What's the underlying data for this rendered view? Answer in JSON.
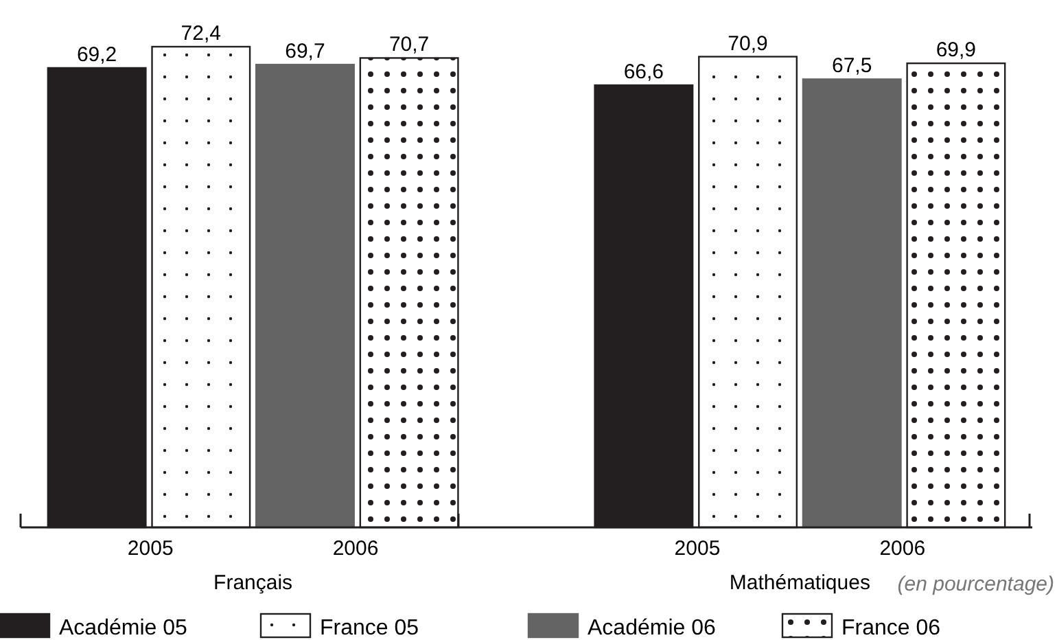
{
  "chart_data": {
    "type": "bar",
    "categories": [
      "Français",
      "Mathématiques"
    ],
    "series": [
      {
        "name": "Académie 05",
        "color": "#231f20",
        "values": [
          69.2,
          66.6
        ],
        "value_labels": [
          "69,2",
          "66,6"
        ]
      },
      {
        "name": "France 05",
        "color": "#231f20",
        "values": [
          72.4,
          70.9
        ],
        "value_labels": [
          "72,4",
          "70,9"
        ]
      },
      {
        "name": "Académie 06",
        "color": "#646464",
        "values": [
          69.7,
          67.5
        ],
        "value_labels": [
          "69,7",
          "67,5"
        ]
      },
      {
        "name": "France 06",
        "color": "#231f20",
        "values": [
          70.7,
          69.9
        ],
        "value_labels": [
          "70,7",
          "69,9"
        ]
      }
    ],
    "legend": "bottom",
    "annotations": [
      "2005",
      "2006",
      "2005",
      "2006",
      "(en pourcentage)"
    ]
  }
}
